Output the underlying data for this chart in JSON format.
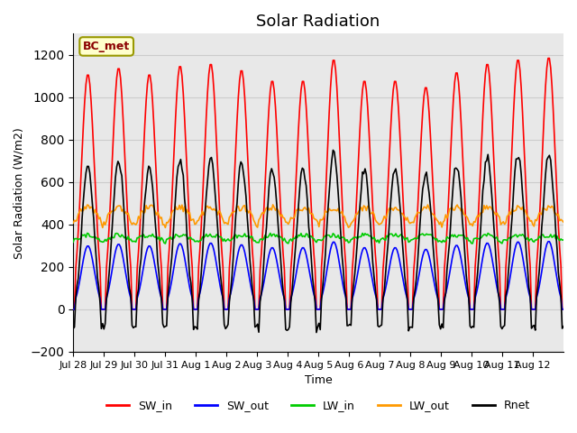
{
  "title": "Solar Radiation",
  "ylabel": "Solar Radiation (W/m2)",
  "xlabel": "Time",
  "ylim": [
    -200,
    1300
  ],
  "yticks": [
    -200,
    0,
    200,
    400,
    600,
    800,
    1000,
    1200
  ],
  "annotation": "BC_met",
  "legend_entries": [
    "SW_in",
    "SW_out",
    "LW_in",
    "LW_out",
    "Rnet"
  ],
  "legend_colors": [
    "#ff0000",
    "#0000ff",
    "#00cc00",
    "#ff9900",
    "#000000"
  ],
  "background_color": "#ffffff",
  "grid_color": "#cccccc",
  "n_days": 16,
  "day_labels": [
    "Jul 28",
    "Jul 29",
    "Jul 30",
    "Jul 31",
    "Aug 1",
    "Aug 2",
    "Aug 3",
    "Aug 4",
    "Aug 5",
    "Aug 6",
    "Aug 7",
    "Aug 8",
    "Aug 9",
    "Aug 10",
    "Aug 11",
    "Aug 12"
  ],
  "sw_in_peaks": [
    1110,
    1140,
    1110,
    1150,
    1160,
    1130,
    1080,
    1080,
    1180,
    1080,
    1080,
    1050,
    1120,
    1160,
    1180,
    1190
  ],
  "ax_facecolor": "#e8e8e8"
}
